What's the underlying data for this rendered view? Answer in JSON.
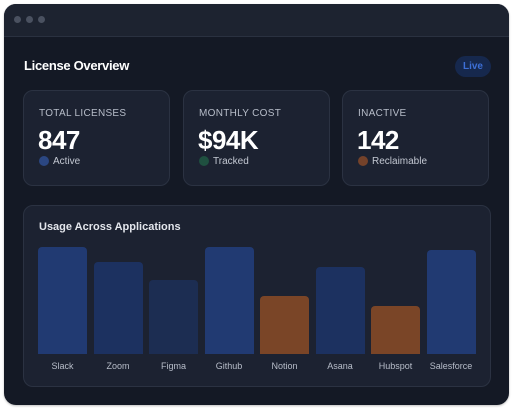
{
  "dashboard": {
    "title": "License Overview",
    "live_badge": "Live"
  },
  "cards": [
    {
      "label": "TOTAL LICENSES",
      "value": "847",
      "status": "Active",
      "status_color": "#2b4782"
    },
    {
      "label": "MONTHLY COST",
      "value": "$94K",
      "status": "Tracked",
      "status_color": "#1f5040"
    },
    {
      "label": "INACTIVE",
      "value": "142",
      "status": "Reclaimable",
      "status_color": "#74422a"
    }
  ],
  "colors": {
    "window_bg": "#141925",
    "card_bg": "#1c2231",
    "accent_blue": "#213a72",
    "accent_orange": "#7a4527",
    "live_text": "#3d6fd6"
  },
  "chart_data": {
    "type": "bar",
    "title": "Usage Across Applications",
    "categories": [
      "Slack",
      "Zoom",
      "Figma",
      "Github",
      "Notion",
      "Asana",
      "Hubspot",
      "Salesforce"
    ],
    "values": [
      100,
      86,
      69,
      100,
      54,
      81,
      45,
      97
    ],
    "ylim": [
      0,
      100
    ],
    "bar_colors": [
      "#213a72",
      "#1c3160",
      "#1c2d52",
      "#213a72",
      "#7a4527",
      "#1c3160",
      "#7a4527",
      "#213a72"
    ],
    "grid": false,
    "legend": "none"
  }
}
